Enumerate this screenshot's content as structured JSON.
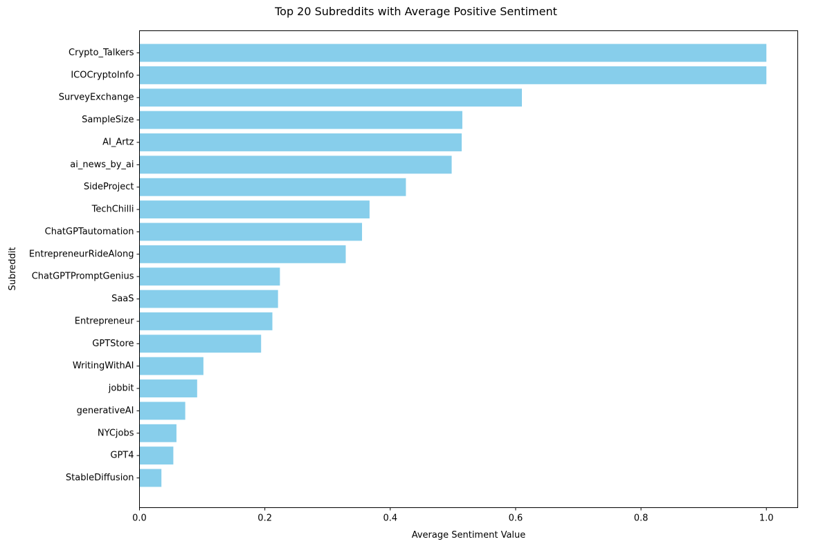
{
  "chart_data": {
    "type": "bar",
    "orientation": "horizontal",
    "title": "Top 20 Subreddits with Average Positive Sentiment",
    "xlabel": "Average Sentiment Value",
    "ylabel": "Subreddit",
    "xlim": [
      0,
      1.05
    ],
    "xticks": [
      0.0,
      0.2,
      0.4,
      0.6,
      0.8,
      1.0
    ],
    "xtick_labels": [
      "0.0",
      "0.2",
      "0.4",
      "0.6",
      "0.8",
      "1.0"
    ],
    "grid": false,
    "legend": "none",
    "bar_color": "#87CEEB",
    "categories": [
      "Crypto_Talkers",
      "ICOCryptoInfo",
      "SurveyExchange",
      "SampleSize",
      "AI_Artz",
      "ai_news_by_ai",
      "SideProject",
      "TechChilli",
      "ChatGPTautomation",
      "EntrepreneurRideAlong",
      "ChatGPTPromptGenius",
      "SaaS",
      "Entrepreneur",
      "GPTStore",
      "WritingWithAI",
      "jobbit",
      "generativeAI",
      "NYCjobs",
      "GPT4",
      "StableDiffusion"
    ],
    "values": [
      1.0,
      1.0,
      0.61,
      0.515,
      0.514,
      0.498,
      0.425,
      0.367,
      0.355,
      0.329,
      0.224,
      0.221,
      0.212,
      0.194,
      0.102,
      0.092,
      0.073,
      0.059,
      0.054,
      0.035
    ]
  }
}
